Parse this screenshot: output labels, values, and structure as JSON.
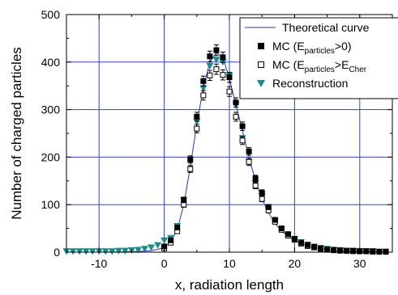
{
  "chart_data": {
    "type": "scatter",
    "xlabel": "x, radiation length",
    "ylabel": "Number of charged particles",
    "xlim": [
      -15,
      35
    ],
    "ylim": [
      0,
      500
    ],
    "x_ticks": [
      -10,
      0,
      10,
      20,
      30
    ],
    "y_ticks": [
      0,
      100,
      200,
      300,
      400,
      500
    ],
    "x_tick_labels": [
      "-10",
      "0",
      "10",
      "20",
      "30"
    ],
    "y_tick_labels": [
      "0",
      "100",
      "200",
      "300",
      "400",
      "500"
    ],
    "grid": true,
    "legend_position": "top-right",
    "series": [
      {
        "name": "Theoretical curve",
        "kind": "line",
        "color": "#3333aa",
        "x": [
          -15,
          -10,
          -5,
          -2,
          -1,
          0,
          1,
          2,
          3,
          4,
          5,
          6,
          7,
          8,
          9,
          10,
          11,
          12,
          13,
          14,
          15,
          16,
          17,
          18,
          19,
          20,
          22,
          24,
          26,
          28,
          30,
          32,
          35
        ],
        "y": [
          0,
          0,
          1,
          3,
          6,
          10,
          22,
          48,
          100,
          180,
          270,
          345,
          400,
          420,
          410,
          365,
          310,
          255,
          200,
          150,
          112,
          83,
          60,
          45,
          33,
          24,
          13,
          7,
          4,
          2,
          1,
          1,
          0
        ]
      },
      {
        "name": "MC (Eparticles>0)",
        "legend_main": "MC (E",
        "legend_sub": "particles",
        "legend_tail": ">0)",
        "kind": "filled-square",
        "color": "#000000",
        "x": [
          0,
          1,
          2,
          3,
          4,
          5,
          6,
          7,
          8,
          9,
          10,
          11,
          12,
          13,
          14,
          15,
          16,
          17,
          18,
          19,
          20,
          21,
          22,
          23,
          24,
          25,
          26,
          27,
          28,
          29,
          30,
          31,
          32,
          33,
          34
        ],
        "y": [
          12,
          25,
          52,
          110,
          195,
          285,
          360,
          412,
          425,
          410,
          368,
          315,
          265,
          212,
          155,
          125,
          95,
          68,
          50,
          38,
          28,
          20,
          15,
          11,
          8,
          6,
          5,
          4,
          3,
          3,
          2,
          2,
          2,
          1,
          1
        ]
      },
      {
        "name": "MC (Eparticles>ECher)",
        "legend_main": "MC (E",
        "legend_sub": "particles",
        "legend_mid": ">E",
        "legend_sub2": "Cher",
        "kind": "open-square",
        "color": "#000000",
        "x": [
          0,
          1,
          2,
          3,
          4,
          5,
          6,
          7,
          8,
          9,
          10,
          11,
          12,
          13,
          14,
          15,
          16,
          17,
          18,
          19,
          20,
          21,
          22,
          23,
          24,
          25,
          26,
          27,
          28,
          29,
          30,
          31,
          32,
          33,
          34
        ],
        "y": [
          8,
          20,
          44,
          100,
          175,
          260,
          330,
          372,
          385,
          373,
          338,
          285,
          235,
          190,
          140,
          112,
          88,
          64,
          47,
          35,
          26,
          18,
          13,
          10,
          7,
          5,
          4,
          3,
          3,
          2,
          2,
          2,
          1,
          1,
          1
        ]
      },
      {
        "name": "Reconstruction",
        "kind": "triangle-down",
        "color": "#1a8a8a",
        "x": [
          -15,
          -14,
          -13,
          -12,
          -11,
          -10,
          -9,
          -8,
          -7,
          -6,
          -5,
          -4,
          -3,
          -2,
          -1,
          0,
          1,
          2,
          3,
          4,
          5,
          6,
          7,
          8,
          9,
          10,
          11,
          12,
          13,
          14,
          15,
          16,
          17,
          18,
          19,
          20,
          21,
          22,
          23,
          24,
          25,
          26,
          27,
          28,
          29,
          30,
          31,
          32,
          33,
          34
        ],
        "y": [
          2,
          2,
          2,
          2,
          2,
          2,
          2,
          2,
          3,
          3,
          4,
          5,
          7,
          10,
          15,
          25,
          30,
          55,
          110,
          195,
          275,
          345,
          392,
          405,
          400,
          372,
          310,
          240,
          190,
          145,
          118,
          88,
          65,
          48,
          36,
          28,
          21,
          16,
          12,
          9,
          7,
          5,
          4,
          3,
          3,
          2,
          2,
          2,
          1,
          1
        ]
      }
    ]
  }
}
